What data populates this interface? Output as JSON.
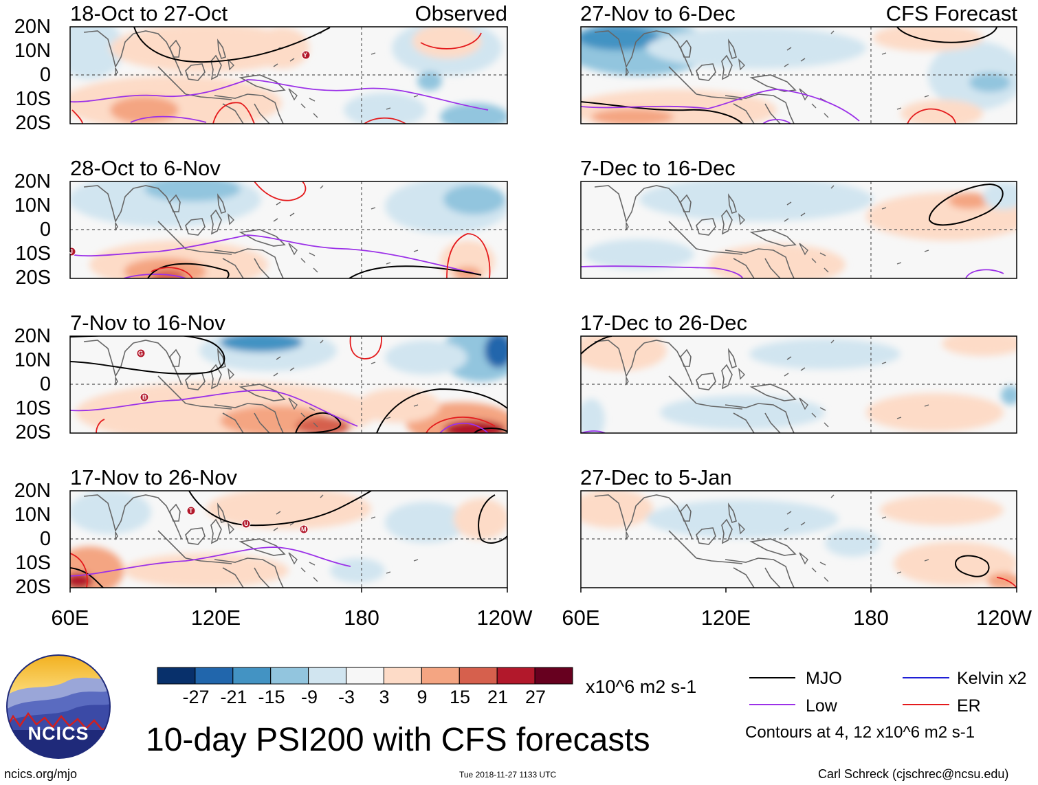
{
  "figure": {
    "title": "10-day PSI200 with CFS forecasts",
    "observed_label": "Observed",
    "forecast_label": "CFS Forecast",
    "lat_labels": [
      "20N",
      "10N",
      "0",
      "10S",
      "20S"
    ],
    "lon_labels": [
      "60E",
      "120E",
      "180",
      "120W"
    ]
  },
  "panels": {
    "p0": {
      "title": "18-Oct to 27-Oct"
    },
    "p1": {
      "title": "28-Oct to 6-Nov"
    },
    "p2": {
      "title": "7-Nov to 16-Nov"
    },
    "p3": {
      "title": "17-Nov to 26-Nov"
    },
    "p4": {
      "title": "27-Nov to 6-Dec"
    },
    "p5": {
      "title": "7-Dec to 16-Dec"
    },
    "p6": {
      "title": "17-Dec to 26-Dec"
    },
    "p7": {
      "title": "27-Dec to 5-Jan"
    }
  },
  "colorbar": {
    "labels": [
      "-27",
      "-21",
      "-15",
      "-9",
      "-3",
      "3",
      "9",
      "15",
      "21",
      "27"
    ],
    "colors": [
      "#08306b",
      "#2166ac",
      "#4393c3",
      "#92c5de",
      "#d1e5f0",
      "#f7f7f7",
      "#fddbc7",
      "#f4a582",
      "#d6604d",
      "#b2182b",
      "#67001f"
    ],
    "units": "x10^6 m2 s-1"
  },
  "legend": {
    "mjo": {
      "label": "MJO",
      "color": "#000000"
    },
    "kelvin": {
      "label": "Kelvin x2",
      "color": "#1f1fd6"
    },
    "low": {
      "label": "Low",
      "color": "#9b30e8"
    },
    "er": {
      "label": "ER",
      "color": "#e41a1c"
    },
    "contours_note": "Contours at 4, 12 x10^6 m2 s-1"
  },
  "logo": {
    "text": "NCICS"
  },
  "footer": {
    "url": "ncics.org/mjo",
    "timestamp": "Tue 2018-11-27 1133 UTC",
    "author": "Carl Schreck (cjschrec@ncsu.edu)"
  },
  "storm_markers": {
    "p0": [
      "Y"
    ],
    "p1": [
      "J"
    ],
    "p2": [
      "G",
      "B"
    ],
    "p3": [
      "T",
      "U",
      "M"
    ]
  }
}
